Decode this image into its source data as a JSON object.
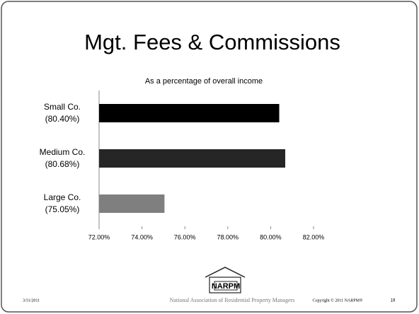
{
  "slide": {
    "title": "Mgt. Fees & Commissions",
    "footer": {
      "date": "3/31/2011",
      "organization": "National Association of Residential Property Managers",
      "copyright": "Copyright © 2011 NARPM®",
      "page": "19",
      "logo": "NARPM"
    }
  },
  "chart_data": {
    "type": "hbar",
    "title": "As a percentage of overall income",
    "categories": [
      "Small Co.",
      "Medium Co.",
      "Large Co."
    ],
    "values": [
      80.4,
      80.68,
      75.05
    ],
    "value_labels": [
      "(80.40%)",
      "(80.68%)",
      "(75.05%)"
    ],
    "colors": [
      "#000000",
      "#262626",
      "#7f7f7f"
    ],
    "xlim": [
      72,
      82
    ],
    "xticks": [
      {
        "value": 72,
        "label": "72.00%"
      },
      {
        "value": 74,
        "label": "74.00%"
      },
      {
        "value": 76,
        "label": "76.00%"
      },
      {
        "value": 78,
        "label": "78.00%"
      },
      {
        "value": 80,
        "label": "80.00%"
      },
      {
        "value": 82,
        "label": "82.00%"
      }
    ],
    "grid": false
  }
}
